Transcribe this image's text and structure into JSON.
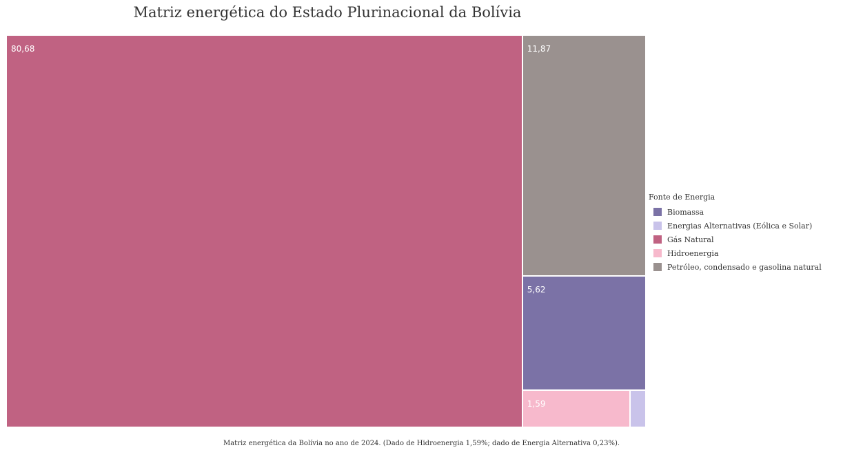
{
  "chart_data": {
    "type": "treemap",
    "title": "Matriz energética do Estado Plurinacional da Bolívia",
    "legend_title": "Fonte de Energia",
    "legend_position": "right",
    "caption": "Matriz energética da Bolívia no ano de 2024. (Dado de Hidroenergia 1,59%; dado de Energia Alternativa 0,23%).",
    "categories": [
      "Biomassa",
      "Energias Alternativas (Eólica e Solar)",
      "Gás Natural",
      "Hidroenergia",
      "Petróleo, condensado e gasolina natural"
    ],
    "values": [
      5.62,
      0.23,
      80.68,
      1.59,
      11.87
    ],
    "value_labels": [
      "5,62",
      "",
      "80,68",
      "1,59",
      "11,87"
    ],
    "colors": [
      "#7b72a6",
      "#c9c3ea",
      "#c06282",
      "#f7b9cc",
      "#9a918f"
    ]
  }
}
